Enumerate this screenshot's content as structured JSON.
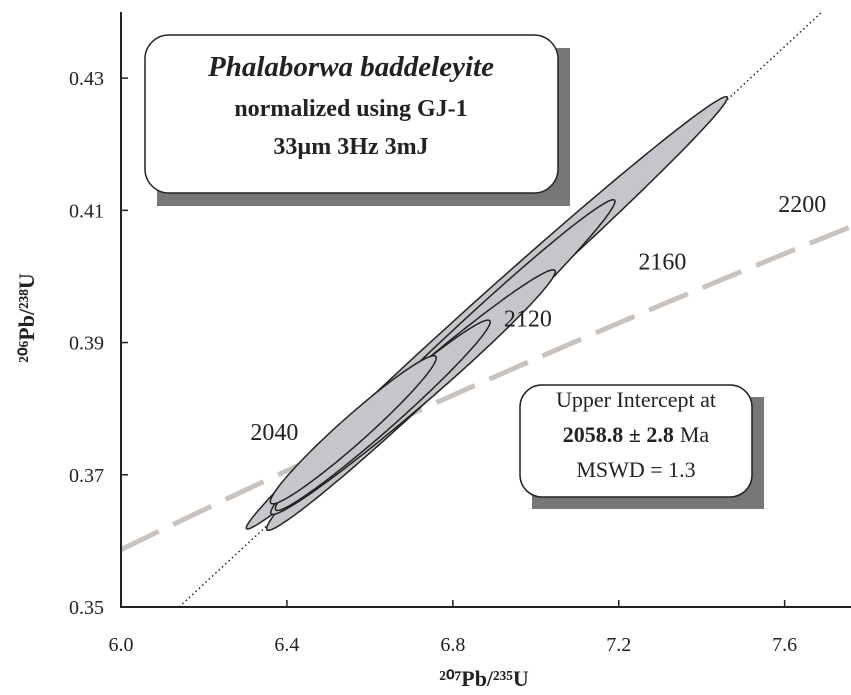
{
  "chart_data": {
    "type": "concordia",
    "x_label": "²⁰⁷Pb/²³⁵U",
    "y_label": "²⁰⁶Pb/²³⁸U",
    "xlim": [
      6.0,
      7.76
    ],
    "ylim": [
      0.35,
      0.44
    ],
    "xticks": [
      {
        "value": 6,
        "label": "6.0"
      },
      6.4,
      6.8,
      7.2,
      7.6
    ],
    "yticks": [
      0.35,
      0.37,
      0.39,
      0.41,
      0.43
    ],
    "concordia_ages": [
      2040,
      2120,
      2160,
      2200
    ],
    "concordia_color": "#c9c2bd",
    "discordia": {
      "x": [
        6.14,
        7.69
      ],
      "y": [
        0.35,
        0.44
      ]
    },
    "ellipse_color": "#c6c6ca",
    "ellipses": [
      {
        "x": 6.882,
        "y": 0.3945,
        "x_err": 0.58,
        "y_err": 0.0327,
        "rho": 0.995
      },
      {
        "x": 6.771,
        "y": 0.3866,
        "x_err": 0.42,
        "y_err": 0.025,
        "rho": 0.99
      },
      {
        "x": 6.704,
        "y": 0.3825,
        "x_err": 0.343,
        "y_err": 0.0185,
        "rho": 0.985
      },
      {
        "x": 6.631,
        "y": 0.379,
        "x_err": 0.259,
        "y_err": 0.0144,
        "rho": 0.98
      },
      {
        "x": 6.56,
        "y": 0.3768,
        "x_err": 0.2,
        "y_err": 0.0112,
        "rho": 0.97
      }
    ],
    "sample_box": {
      "title": "Phalaborwa baddeleyite",
      "lines": [
        "normalized using GJ-1",
        "33µm 3Hz 3mJ"
      ]
    },
    "intercept_box": {
      "label": "Upper Intercept at",
      "age": "2058.8 ± 2.8",
      "unit": "Ma",
      "mswd": "MSWD = 1.3"
    }
  }
}
